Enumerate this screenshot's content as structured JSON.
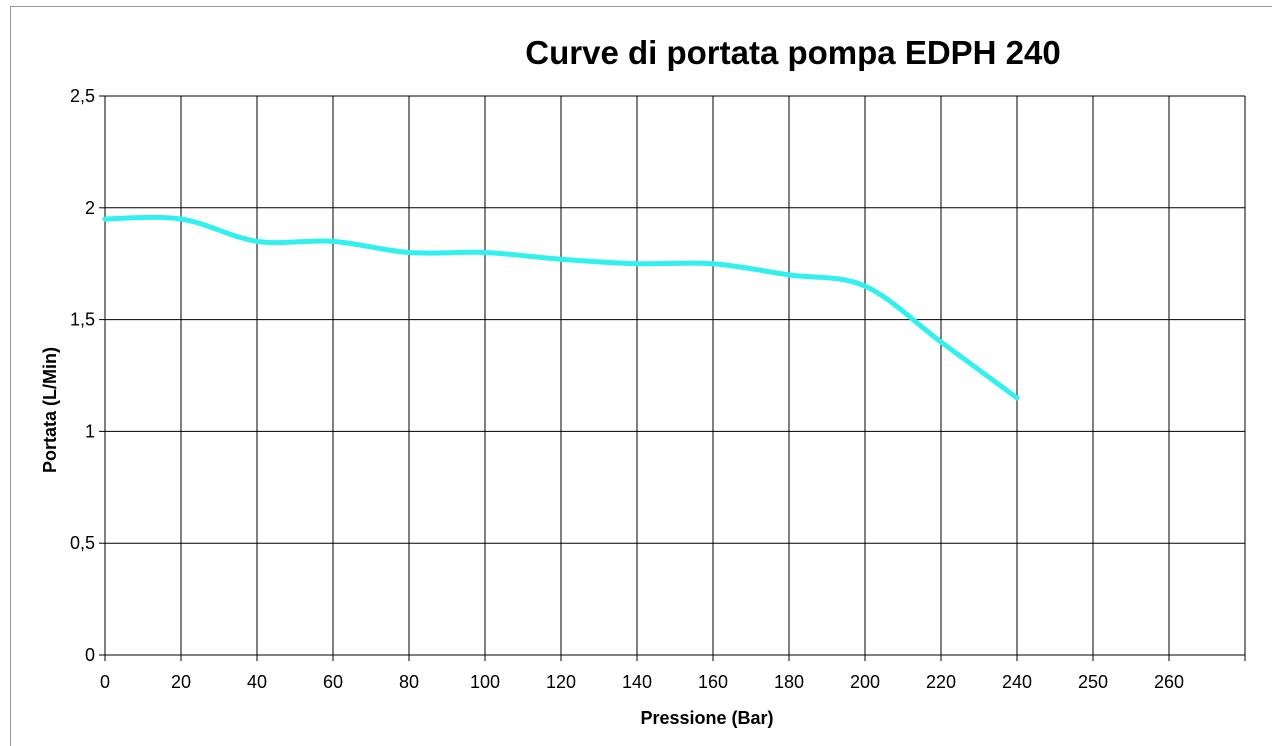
{
  "chart_data": {
    "type": "line",
    "title": "Curve di portata pompa EDPH 240",
    "xlabel": "Pressione (Bar)",
    "ylabel": "Portata (L/Min)",
    "x_tick_labels": [
      "0",
      "20",
      "40",
      "60",
      "80",
      "100",
      "120",
      "140",
      "160",
      "180",
      "200",
      "220",
      "240",
      "250",
      "260"
    ],
    "y_tick_labels": [
      "0",
      "0,5",
      "1",
      "1,5",
      "2",
      "2,5"
    ],
    "y_ticks": [
      0,
      0.5,
      1,
      1.5,
      2,
      2.5
    ],
    "ylim": [
      0,
      2.5
    ],
    "grid": true,
    "line_color": "#33f0f0",
    "series": [
      {
        "x": [
          0,
          20,
          40,
          60,
          80,
          100,
          120,
          140,
          160,
          180,
          200,
          220,
          240
        ],
        "values": [
          1.95,
          1.95,
          1.85,
          1.85,
          1.8,
          1.8,
          1.77,
          1.75,
          1.75,
          1.7,
          1.65,
          1.4,
          1.15
        ]
      }
    ]
  }
}
